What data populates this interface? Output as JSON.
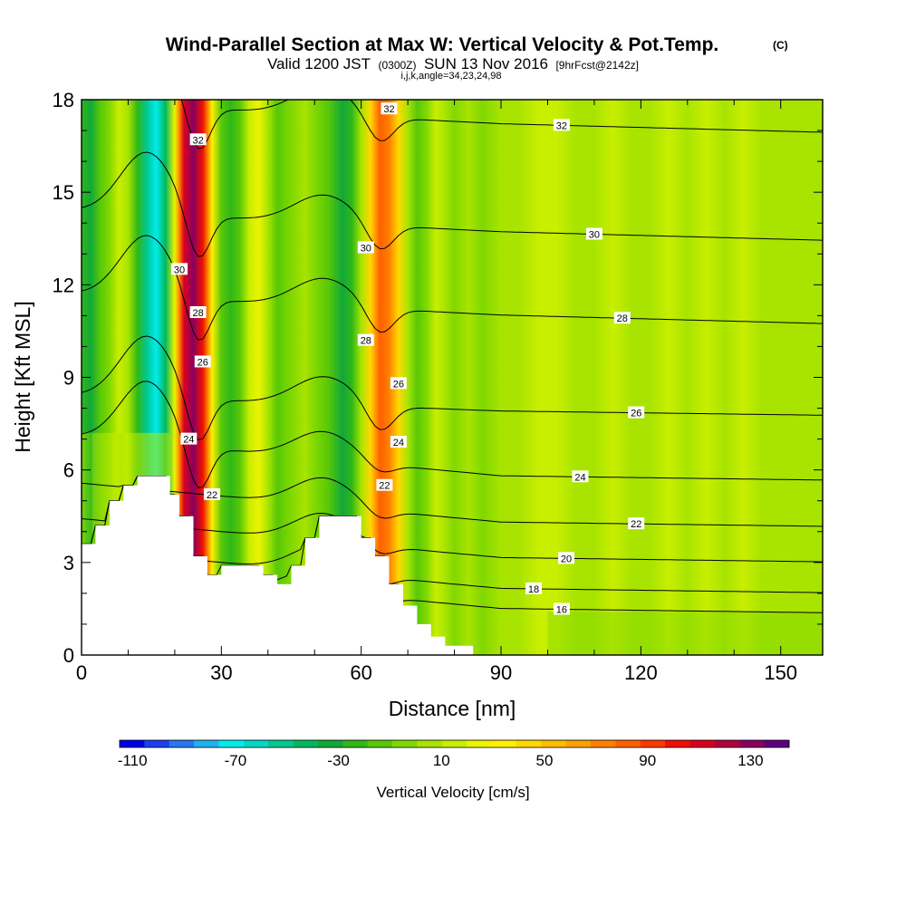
{
  "chart_data": {
    "type": "heatmap",
    "title": "Wind-Parallel Section at Max W: Vertical Velocity & Pot.Temp.",
    "title_mark": "(C)",
    "subtitle": {
      "valid": "Valid 1200 JST",
      "utc": "(0300Z)",
      "date": "SUN 13 Nov 2016",
      "forecast": "[9hrFcst@2142z]",
      "indices": "i,j,k,angle=34,23,24,98"
    },
    "xlabel": "Distance [nm]",
    "ylabel": "Height [Kft MSL]",
    "xlim": [
      0,
      159
    ],
    "ylim": [
      0,
      18
    ],
    "x_ticks": [
      "0",
      "30",
      "60",
      "90",
      "120",
      "150"
    ],
    "y_ticks": [
      "0",
      "3",
      "6",
      "9",
      "12",
      "15",
      "18"
    ],
    "colorbar": {
      "title": "Vertical Velocity [cm/s]",
      "min": -115,
      "max": 145,
      "step": 10,
      "labels": [
        "-110",
        "-70",
        "-30",
        "10",
        "50",
        "90",
        "130"
      ],
      "colors": [
        "#0000e6",
        "#1a40f0",
        "#2878f0",
        "#20b0f0",
        "#00ecec",
        "#00d8c8",
        "#00c890",
        "#00b860",
        "#10a838",
        "#30b818",
        "#58c808",
        "#80d800",
        "#a8e400",
        "#c8ee00",
        "#ecf400",
        "#fff000",
        "#ffd800",
        "#ffbc00",
        "#ffa000",
        "#ff8000",
        "#ff6000",
        "#ff3800",
        "#f01000",
        "#d80020",
        "#b00040",
        "#880060",
        "#5c0080"
      ]
    },
    "velocity_columns": [
      {
        "x": 0,
        "w": -20
      },
      {
        "x": 2,
        "w": -35
      },
      {
        "x": 4,
        "w": -15
      },
      {
        "x": 6,
        "w": -5
      },
      {
        "x": 8,
        "w": 15
      },
      {
        "x": 10,
        "w": 5
      },
      {
        "x": 12,
        "w": -25
      },
      {
        "x": 14,
        "w": -50
      },
      {
        "x": 16,
        "w": -70
      },
      {
        "x": 18,
        "w": -45
      },
      {
        "x": 20,
        "w": 30
      },
      {
        "x": 21,
        "w": 80
      },
      {
        "x": 22,
        "w": 120
      },
      {
        "x": 24,
        "w": 140
      },
      {
        "x": 26,
        "w": 110
      },
      {
        "x": 28,
        "w": 40
      },
      {
        "x": 30,
        "w": -10
      },
      {
        "x": 32,
        "w": -25
      },
      {
        "x": 34,
        "w": -10
      },
      {
        "x": 36,
        "w": 15
      },
      {
        "x": 38,
        "w": 25
      },
      {
        "x": 40,
        "w": 5
      },
      {
        "x": 42,
        "w": -10
      },
      {
        "x": 45,
        "w": -5
      },
      {
        "x": 48,
        "w": 5
      },
      {
        "x": 50,
        "w": 0
      },
      {
        "x": 53,
        "w": -15
      },
      {
        "x": 56,
        "w": -30
      },
      {
        "x": 58,
        "w": -25
      },
      {
        "x": 60,
        "w": 10
      },
      {
        "x": 62,
        "w": 50
      },
      {
        "x": 64,
        "w": 85
      },
      {
        "x": 66,
        "w": 75
      },
      {
        "x": 68,
        "w": 45
      },
      {
        "x": 70,
        "w": 10
      },
      {
        "x": 72,
        "w": -10
      },
      {
        "x": 74,
        "w": 0
      },
      {
        "x": 76,
        "w": 20
      },
      {
        "x": 78,
        "w": 5
      },
      {
        "x": 80,
        "w": -5
      },
      {
        "x": 83,
        "w": 5
      },
      {
        "x": 86,
        "w": 0
      },
      {
        "x": 90,
        "w": 5
      },
      {
        "x": 94,
        "w": 5
      },
      {
        "x": 98,
        "w": 15
      },
      {
        "x": 102,
        "w": 15
      },
      {
        "x": 106,
        "w": 10
      },
      {
        "x": 110,
        "w": 10
      },
      {
        "x": 114,
        "w": 15
      },
      {
        "x": 118,
        "w": 10
      },
      {
        "x": 122,
        "w": 10
      },
      {
        "x": 126,
        "w": 15
      },
      {
        "x": 130,
        "w": 10
      },
      {
        "x": 134,
        "w": 15
      },
      {
        "x": 138,
        "w": 10
      },
      {
        "x": 142,
        "w": 15
      },
      {
        "x": 146,
        "w": 10
      },
      {
        "x": 150,
        "w": 10
      },
      {
        "x": 154,
        "w": 5
      },
      {
        "x": 159,
        "w": 5
      }
    ],
    "terrain": [
      [
        0,
        3.6
      ],
      [
        3,
        3.6
      ],
      [
        3,
        4.2
      ],
      [
        6,
        4.2
      ],
      [
        6,
        5.0
      ],
      [
        9,
        5.0
      ],
      [
        9,
        5.5
      ],
      [
        12,
        5.5
      ],
      [
        12,
        5.8
      ],
      [
        19,
        5.8
      ],
      [
        19,
        5.2
      ],
      [
        21,
        5.2
      ],
      [
        21,
        4.5
      ],
      [
        24,
        4.5
      ],
      [
        24,
        3.2
      ],
      [
        27,
        3.2
      ],
      [
        27,
        2.6
      ],
      [
        30,
        2.6
      ],
      [
        30,
        2.9
      ],
      [
        39,
        2.9
      ],
      [
        39,
        2.6
      ],
      [
        42,
        2.6
      ],
      [
        42,
        2.3
      ],
      [
        45,
        2.3
      ],
      [
        45,
        2.9
      ],
      [
        48,
        2.9
      ],
      [
        48,
        3.8
      ],
      [
        51,
        3.8
      ],
      [
        51,
        4.5
      ],
      [
        60,
        4.5
      ],
      [
        60,
        3.8
      ],
      [
        63,
        3.8
      ],
      [
        63,
        3.2
      ],
      [
        66,
        3.2
      ],
      [
        66,
        2.3
      ],
      [
        69,
        2.3
      ],
      [
        69,
        1.6
      ],
      [
        72,
        1.6
      ],
      [
        72,
        1.0
      ],
      [
        75,
        1.0
      ],
      [
        75,
        0.6
      ],
      [
        78,
        0.6
      ],
      [
        78,
        0.3
      ],
      [
        84,
        0.3
      ],
      [
        84,
        0
      ],
      [
        159,
        0
      ]
    ],
    "isentropes": [
      {
        "value": 16,
        "base": 1.45,
        "label_x": 103
      },
      {
        "value": 18,
        "base": 2.1,
        "label_x": 97
      },
      {
        "value": 20,
        "base": 3.1,
        "label_x": 104
      },
      {
        "value": 22,
        "base": 4.25,
        "label_x": 119,
        "extra_label": {
          "x": 28,
          "y": 5.2
        }
      },
      {
        "value": 24,
        "base": 5.75,
        "label_x": 107,
        "extra_label": {
          "x": 23,
          "y": 7.0
        }
      },
      {
        "value": 26,
        "base": 7.85,
        "label_x": 119,
        "extra_label": {
          "x": 26,
          "y": 9.5
        }
      },
      {
        "value": 28,
        "base": 10.9,
        "label_x": 116,
        "extra_label": {
          "x": 25,
          "y": 11.1
        }
      },
      {
        "value": 30,
        "base": 13.6,
        "label_x": 110,
        "extra_label": {
          "x": 21,
          "y": 12.5
        }
      },
      {
        "value": 32,
        "base": 17.1,
        "label_x": 103,
        "extra_label": {
          "x": 25,
          "y": 16.7
        }
      }
    ],
    "extra_isentrope_labels": [
      {
        "value": 32,
        "x": 66,
        "y": 17.7
      },
      {
        "value": 30,
        "x": 61,
        "y": 13.2
      },
      {
        "value": 28,
        "x": 61,
        "y": 10.2
      },
      {
        "value": 26,
        "x": 68,
        "y": 8.8
      },
      {
        "value": 24,
        "x": 68,
        "y": 6.9
      },
      {
        "value": 22,
        "x": 65,
        "y": 5.5
      }
    ]
  }
}
